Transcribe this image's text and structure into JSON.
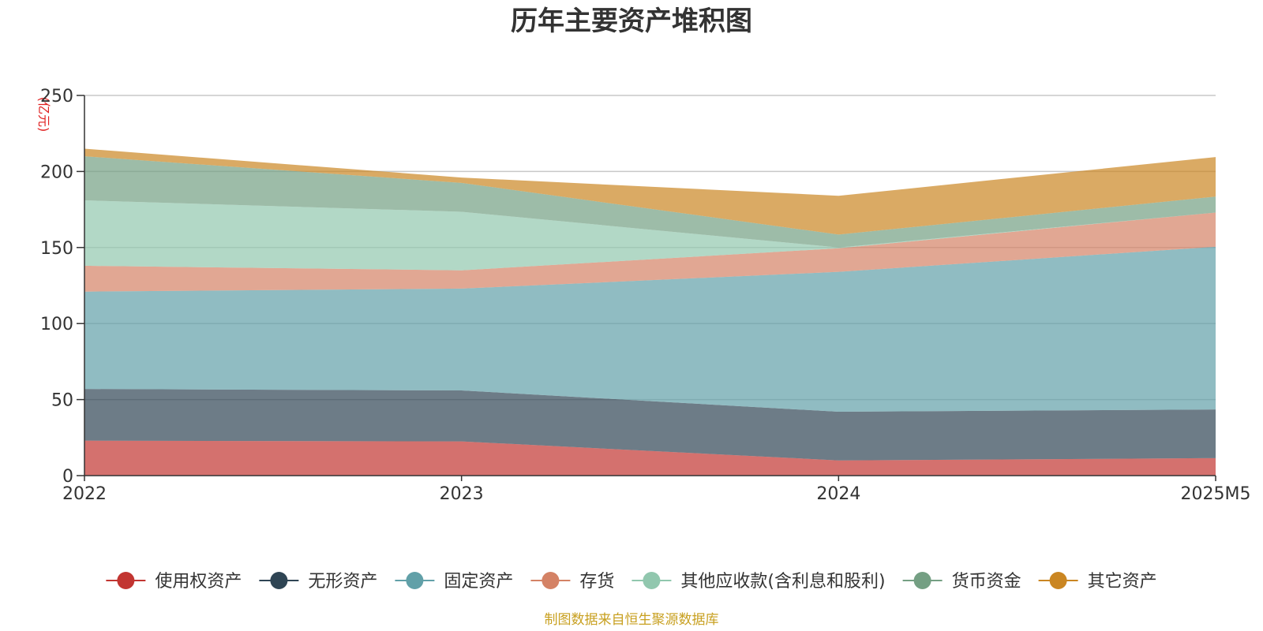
{
  "chart_data": {
    "type": "area",
    "stacked": true,
    "title": "历年主要资产堆积图",
    "unit_label": "(亿元)",
    "x": [
      "2022",
      "2023",
      "2024",
      "2025M5"
    ],
    "ylim": [
      0,
      250
    ],
    "yticks": [
      0,
      50,
      100,
      150,
      200,
      250
    ],
    "grid": true,
    "legend_position": "bottom",
    "series": [
      {
        "name": "使用权资产",
        "color": "#c23531",
        "values": [
          23,
          22.5,
          10,
          11.5
        ]
      },
      {
        "name": "无形资产",
        "color": "#2f4554",
        "values": [
          34,
          33.5,
          32,
          32
        ]
      },
      {
        "name": "固定资产",
        "color": "#61a0a8",
        "values": [
          64,
          67,
          92,
          107
        ]
      },
      {
        "name": "存货",
        "color": "#d48265",
        "values": [
          17,
          12,
          15.5,
          22.5
        ]
      },
      {
        "name": "其他应收款(含利息和股利)",
        "color": "#91c7ae",
        "values": [
          43,
          38.5,
          0.5,
          0
        ]
      },
      {
        "name": "货币资金",
        "color": "#749f83",
        "values": [
          29,
          19,
          8.5,
          10.5
        ]
      },
      {
        "name": "其它资产",
        "color": "#ca8622",
        "values": [
          5,
          3.5,
          25.5,
          26
        ]
      }
    ]
  },
  "source_note": "制图数据来自恒生聚源数据库"
}
